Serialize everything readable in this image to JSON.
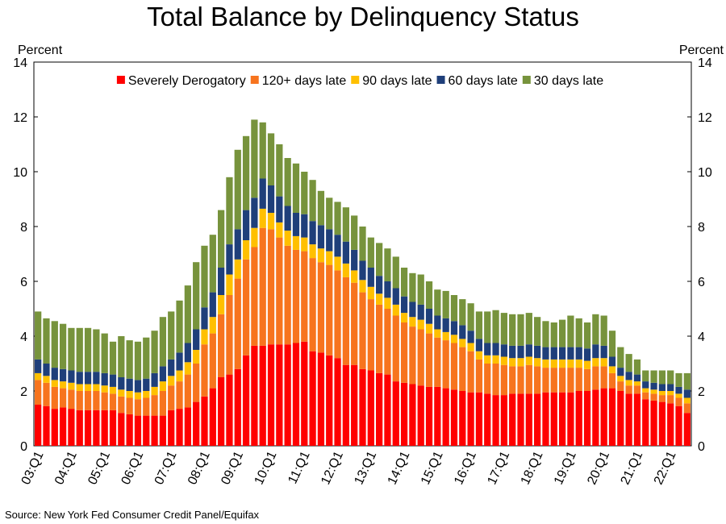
{
  "chart_data": {
    "type": "stacked_bar",
    "title": "Total Balance by Delinquency Status",
    "y_label": "Percent",
    "source": "Source: New York Fed Consumer Credit Panel/Equifax",
    "categories": [
      "03:Q1",
      null,
      null,
      null,
      "04:Q1",
      null,
      null,
      null,
      "05:Q1",
      null,
      null,
      null,
      "06:Q1",
      null,
      null,
      null,
      "07:Q1",
      null,
      null,
      null,
      "08:Q1",
      null,
      null,
      null,
      "09:Q1",
      null,
      null,
      null,
      "10:Q1",
      null,
      null,
      null,
      "11:Q1",
      null,
      null,
      null,
      "12:Q1",
      null,
      null,
      null,
      "13:Q1",
      null,
      null,
      null,
      "14:Q1",
      null,
      null,
      null,
      "15:Q1",
      null,
      null,
      null,
      "16:Q1",
      null,
      null,
      null,
      "17:Q1",
      null,
      null,
      null,
      "18:Q1",
      null,
      null,
      null,
      "19:Q1",
      null,
      null,
      null,
      "20:Q1",
      null,
      null,
      null,
      "21:Q1",
      null,
      null,
      null,
      "22:Q1",
      null,
      null
    ],
    "series": [
      {
        "name": "Severely Derogatory",
        "color": "#ff0000",
        "values": [
          1.5,
          1.45,
          1.35,
          1.4,
          1.35,
          1.3,
          1.3,
          1.3,
          1.3,
          1.3,
          1.2,
          1.15,
          1.1,
          1.1,
          1.1,
          1.1,
          1.3,
          1.35,
          1.4,
          1.6,
          1.8,
          2.1,
          2.5,
          2.6,
          2.8,
          3.3,
          3.65,
          3.65,
          3.7,
          3.7,
          3.7,
          3.75,
          3.8,
          3.45,
          3.4,
          3.3,
          3.2,
          2.95,
          2.95,
          2.8,
          2.75,
          2.65,
          2.6,
          2.35,
          2.3,
          2.25,
          2.2,
          2.15,
          2.15,
          2.1,
          2.05,
          2.0,
          1.95,
          1.95,
          1.9,
          1.85,
          1.85,
          1.9,
          1.9,
          1.9,
          1.9,
          1.95,
          1.95,
          1.95,
          1.95,
          2.0,
          2.0,
          2.05,
          2.1,
          2.1,
          2.0,
          1.9,
          1.9,
          1.7,
          1.65,
          1.6,
          1.55,
          1.45,
          1.2
        ]
      },
      {
        "name": "120+ days late",
        "color": "#f7741e",
        "values": [
          0.9,
          0.85,
          0.8,
          0.7,
          0.7,
          0.7,
          0.7,
          0.7,
          0.65,
          0.6,
          0.6,
          0.6,
          0.6,
          0.65,
          0.75,
          0.9,
          0.9,
          1.0,
          1.2,
          1.4,
          1.9,
          2.0,
          2.3,
          2.9,
          3.3,
          3.5,
          3.6,
          4.3,
          4.2,
          3.9,
          3.6,
          3.4,
          3.3,
          3.4,
          3.3,
          3.3,
          3.2,
          3.2,
          3.0,
          2.8,
          2.6,
          2.5,
          2.4,
          2.4,
          2.2,
          2.1,
          2.05,
          1.95,
          1.8,
          1.75,
          1.7,
          1.6,
          1.5,
          1.2,
          1.1,
          1.15,
          1.1,
          1.0,
          1.0,
          1.05,
          1.0,
          0.9,
          0.9,
          0.9,
          0.9,
          0.85,
          0.8,
          0.85,
          0.8,
          0.55,
          0.35,
          0.3,
          0.3,
          0.25,
          0.25,
          0.25,
          0.3,
          0.3,
          0.35
        ]
      },
      {
        "name": "90 days late",
        "color": "#ffc000",
        "values": [
          0.25,
          0.25,
          0.25,
          0.25,
          0.25,
          0.25,
          0.25,
          0.25,
          0.25,
          0.25,
          0.25,
          0.25,
          0.25,
          0.25,
          0.3,
          0.35,
          0.35,
          0.4,
          0.45,
          0.5,
          0.55,
          0.6,
          0.7,
          0.75,
          0.7,
          0.7,
          0.7,
          0.7,
          0.6,
          0.55,
          0.55,
          0.5,
          0.5,
          0.5,
          0.5,
          0.5,
          0.5,
          0.5,
          0.45,
          0.45,
          0.45,
          0.4,
          0.4,
          0.4,
          0.35,
          0.35,
          0.35,
          0.35,
          0.3,
          0.3,
          0.3,
          0.3,
          0.3,
          0.3,
          0.3,
          0.3,
          0.3,
          0.3,
          0.3,
          0.3,
          0.3,
          0.3,
          0.3,
          0.3,
          0.3,
          0.3,
          0.3,
          0.3,
          0.3,
          0.25,
          0.2,
          0.2,
          0.15,
          0.15,
          0.15,
          0.15,
          0.15,
          0.15,
          0.2
        ]
      },
      {
        "name": "60 days late",
        "color": "#1f3f7a",
        "values": [
          0.5,
          0.45,
          0.45,
          0.45,
          0.45,
          0.45,
          0.45,
          0.45,
          0.45,
          0.45,
          0.45,
          0.45,
          0.45,
          0.45,
          0.5,
          0.55,
          0.6,
          0.65,
          0.7,
          0.75,
          0.8,
          0.9,
          1.0,
          1.1,
          1.1,
          1.1,
          1.1,
          1.1,
          1.0,
          0.95,
          0.9,
          0.85,
          0.85,
          0.85,
          0.85,
          0.8,
          0.8,
          0.8,
          0.75,
          0.7,
          0.7,
          0.65,
          0.6,
          0.6,
          0.6,
          0.55,
          0.55,
          0.55,
          0.5,
          0.5,
          0.5,
          0.5,
          0.45,
          0.45,
          0.45,
          0.45,
          0.45,
          0.45,
          0.45,
          0.45,
          0.45,
          0.45,
          0.45,
          0.45,
          0.45,
          0.45,
          0.45,
          0.5,
          0.45,
          0.35,
          0.3,
          0.3,
          0.25,
          0.25,
          0.25,
          0.25,
          0.25,
          0.25,
          0.3
        ]
      },
      {
        "name": "30 days late",
        "color": "#77933c",
        "values": [
          1.75,
          1.65,
          1.7,
          1.65,
          1.55,
          1.6,
          1.6,
          1.55,
          1.45,
          1.2,
          1.5,
          1.4,
          1.4,
          1.5,
          1.55,
          1.8,
          1.75,
          1.9,
          2.1,
          2.45,
          2.25,
          2.1,
          2.1,
          2.45,
          2.9,
          2.7,
          2.85,
          2.05,
          1.9,
          1.9,
          1.75,
          1.8,
          1.55,
          1.5,
          1.25,
          1.15,
          1.2,
          1.25,
          1.25,
          1.25,
          1.1,
          1.2,
          1.2,
          1.15,
          1.05,
          1.05,
          1.1,
          1.0,
          0.95,
          1.0,
          0.95,
          0.95,
          1.0,
          1.0,
          1.15,
          1.2,
          1.15,
          1.15,
          1.15,
          1.15,
          1.05,
          0.95,
          0.9,
          1.0,
          1.15,
          1.05,
          0.95,
          1.1,
          1.1,
          0.95,
          0.75,
          0.65,
          0.55,
          0.4,
          0.45,
          0.5,
          0.5,
          0.5,
          0.6
        ]
      }
    ],
    "ylim": [
      0,
      14
    ],
    "yticks": [
      0,
      2,
      4,
      6,
      8,
      10,
      12,
      14
    ],
    "legend": "top"
  }
}
